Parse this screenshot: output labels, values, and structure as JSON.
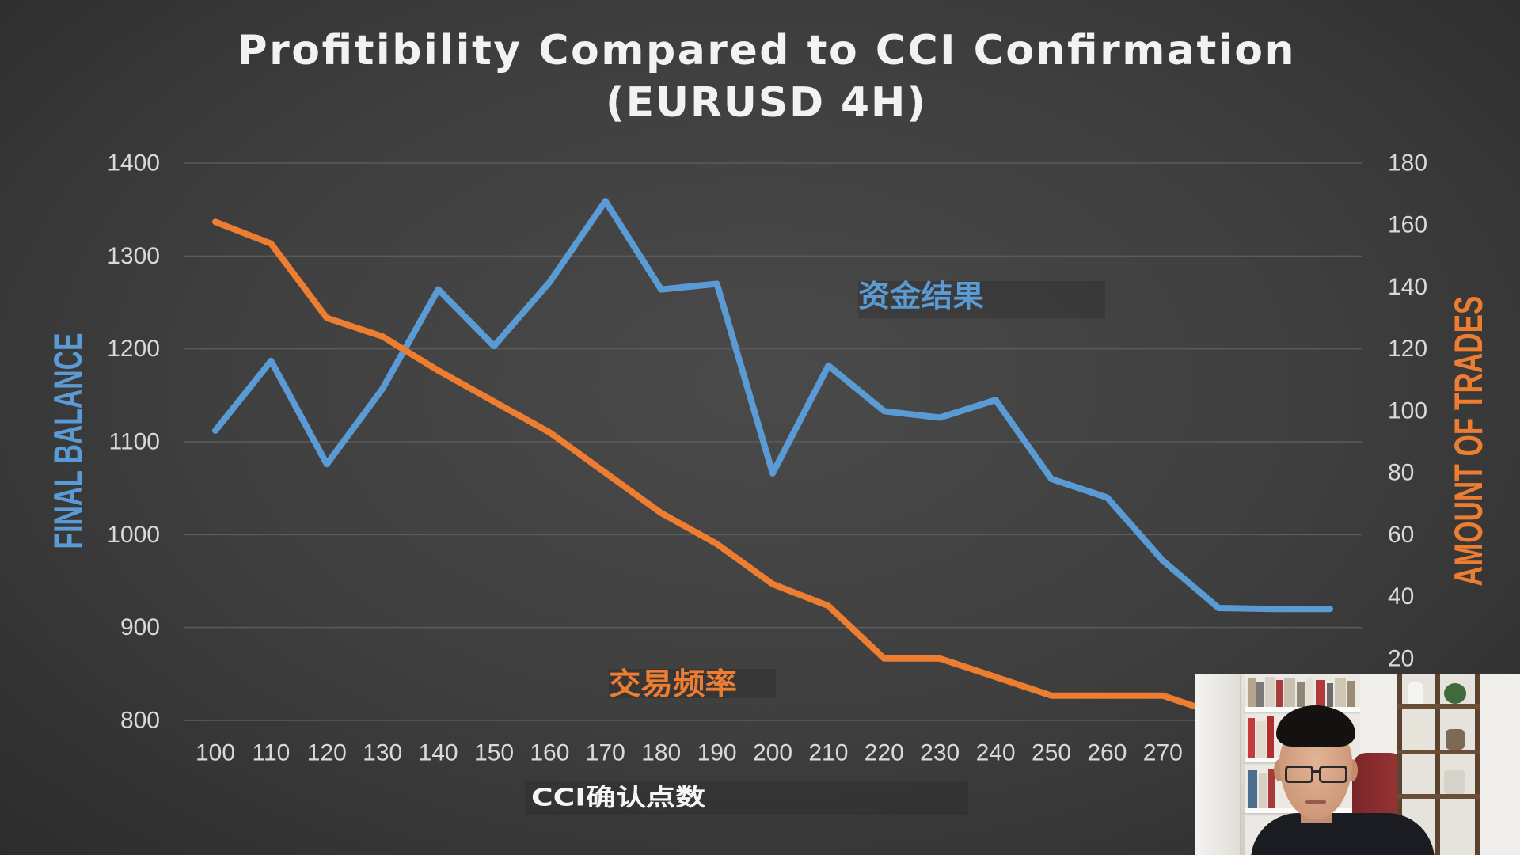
{
  "chart_data": {
    "type": "line",
    "title": "Profitibility Compared to CCI Confirmation",
    "subtitle": "(EURUSD 4H)",
    "xlabel": "CCI确认点数",
    "ylabel": "FINAL BALANCE",
    "y2label": "AMOUNT OF TRADES",
    "x_ticks": [
      100,
      110,
      120,
      130,
      140,
      150,
      160,
      170,
      180,
      190,
      200,
      210,
      220,
      230,
      240,
      250,
      260,
      270
    ],
    "ylim": [
      800,
      1400
    ],
    "y_ticks": [
      800,
      900,
      1000,
      1100,
      1200,
      1300,
      1400
    ],
    "y2lim": [
      0,
      180
    ],
    "y2_ticks": [
      20,
      40,
      60,
      80,
      100,
      120,
      140,
      160,
      180
    ],
    "grid": true,
    "legend": "none",
    "series": [
      {
        "name": "资金结果",
        "axis": "left",
        "color": "#5b9bd5",
        "x": [
          100,
          110,
          120,
          130,
          140,
          150,
          160,
          170,
          180,
          190,
          200,
          210,
          220,
          230,
          240,
          250,
          260,
          270,
          280,
          290,
          300
        ],
        "y": [
          1112,
          1187,
          1076,
          1157,
          1264,
          1203,
          1272,
          1359,
          1264,
          1270,
          1066,
          1182,
          1133,
          1126,
          1145,
          1060,
          1040,
          972,
          921,
          920,
          920
        ]
      },
      {
        "name": "交易频率",
        "axis": "right",
        "color": "#ed7d31",
        "x": [
          100,
          110,
          120,
          130,
          140,
          150,
          160,
          170,
          180,
          190,
          200,
          210,
          220,
          230,
          240,
          250,
          260,
          270,
          280
        ],
        "y": [
          161,
          154,
          130,
          124,
          113,
          103,
          93,
          80,
          67,
          57,
          44,
          37,
          20,
          20,
          14,
          8,
          8,
          8,
          2
        ]
      }
    ]
  },
  "colors": {
    "background": "#404040",
    "title": "#f2f2f2",
    "tick_labels": "#d9d9d9",
    "gridlines": "#5b5b5b"
  }
}
